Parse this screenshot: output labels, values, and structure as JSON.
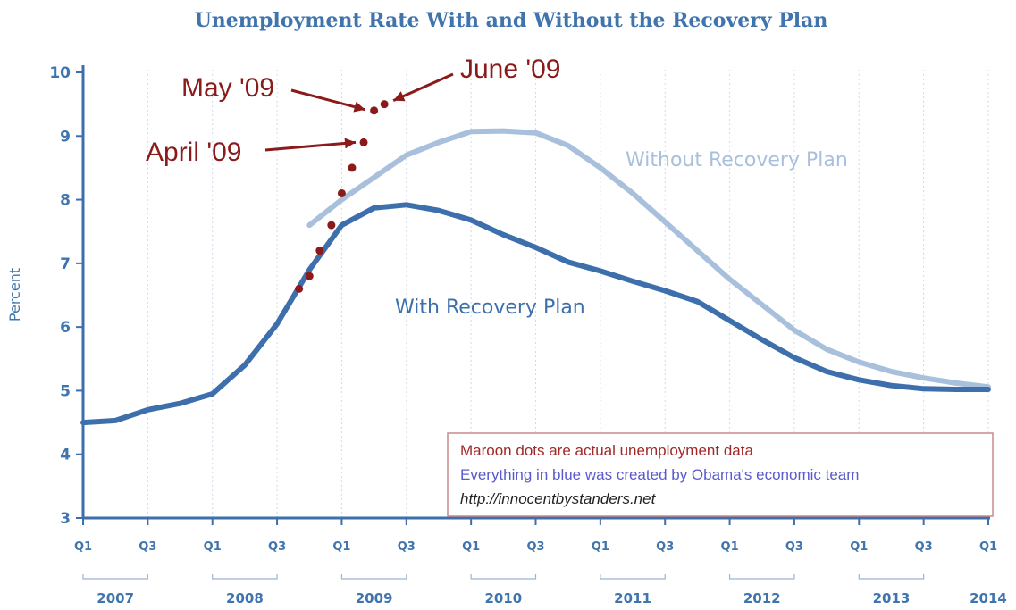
{
  "chart_data": {
    "type": "line",
    "title": "Unemployment Rate With and Without the Recovery Plan",
    "xlabel": "",
    "ylabel": "Percent",
    "ylim": [
      3,
      10
    ],
    "yticks": [
      "3",
      "4",
      "5",
      "6",
      "7",
      "8",
      "9",
      "10"
    ],
    "xlim": [
      2007.0,
      2014.0
    ],
    "quarter_ticks": [
      {
        "label": "Q1",
        "x": 2007.0
      },
      {
        "label": "Q3",
        "x": 2007.5
      },
      {
        "label": "Q1",
        "x": 2008.0
      },
      {
        "label": "Q3",
        "x": 2008.5
      },
      {
        "label": "Q1",
        "x": 2009.0
      },
      {
        "label": "Q3",
        "x": 2009.5
      },
      {
        "label": "Q1",
        "x": 2010.0
      },
      {
        "label": "Q3",
        "x": 2010.5
      },
      {
        "label": "Q1",
        "x": 2011.0
      },
      {
        "label": "Q3",
        "x": 2011.5
      },
      {
        "label": "Q1",
        "x": 2012.0
      },
      {
        "label": "Q3",
        "x": 2012.5
      },
      {
        "label": "Q1",
        "x": 2013.0
      },
      {
        "label": "Q3",
        "x": 2013.5
      },
      {
        "label": "Q1",
        "x": 2014.0
      }
    ],
    "year_labels": [
      {
        "label": "2007",
        "x": 2007.25
      },
      {
        "label": "2008",
        "x": 2008.25
      },
      {
        "label": "2009",
        "x": 2009.25
      },
      {
        "label": "2010",
        "x": 2010.25
      },
      {
        "label": "2011",
        "x": 2011.25
      },
      {
        "label": "2012",
        "x": 2012.25
      },
      {
        "label": "2013",
        "x": 2013.25
      },
      {
        "label": "2014",
        "x": 2014.0
      }
    ],
    "series": [
      {
        "name": "Without Recovery Plan",
        "color": "#a9c0dc",
        "points": [
          [
            2008.75,
            7.6
          ],
          [
            2009.0,
            8.0
          ],
          [
            2009.25,
            8.35
          ],
          [
            2009.5,
            8.7
          ],
          [
            2009.75,
            8.9
          ],
          [
            2010.0,
            9.07
          ],
          [
            2010.25,
            9.08
          ],
          [
            2010.5,
            9.05
          ],
          [
            2010.75,
            8.85
          ],
          [
            2011.0,
            8.5
          ],
          [
            2011.25,
            8.1
          ],
          [
            2011.5,
            7.65
          ],
          [
            2011.75,
            7.2
          ],
          [
            2012.0,
            6.75
          ],
          [
            2012.25,
            6.35
          ],
          [
            2012.5,
            5.95
          ],
          [
            2012.75,
            5.65
          ],
          [
            2013.0,
            5.45
          ],
          [
            2013.25,
            5.3
          ],
          [
            2013.5,
            5.2
          ],
          [
            2013.75,
            5.12
          ],
          [
            2014.0,
            5.06
          ]
        ]
      },
      {
        "name": "With Recovery Plan",
        "color": "#3d6fac",
        "points": [
          [
            2007.0,
            4.5
          ],
          [
            2007.25,
            4.53
          ],
          [
            2007.5,
            4.7
          ],
          [
            2007.75,
            4.8
          ],
          [
            2008.0,
            4.95
          ],
          [
            2008.25,
            5.4
          ],
          [
            2008.5,
            6.05
          ],
          [
            2008.75,
            6.9
          ],
          [
            2009.0,
            7.6
          ],
          [
            2009.25,
            7.87
          ],
          [
            2009.5,
            7.92
          ],
          [
            2009.75,
            7.83
          ],
          [
            2010.0,
            7.68
          ],
          [
            2010.25,
            7.45
          ],
          [
            2010.5,
            7.25
          ],
          [
            2010.75,
            7.02
          ],
          [
            2011.0,
            6.88
          ],
          [
            2011.25,
            6.72
          ],
          [
            2011.5,
            6.57
          ],
          [
            2011.75,
            6.4
          ],
          [
            2012.0,
            6.1
          ],
          [
            2012.25,
            5.8
          ],
          [
            2012.5,
            5.52
          ],
          [
            2012.75,
            5.3
          ],
          [
            2013.0,
            5.17
          ],
          [
            2013.25,
            5.08
          ],
          [
            2013.5,
            5.03
          ],
          [
            2013.75,
            5.02
          ],
          [
            2014.0,
            5.02
          ]
        ]
      },
      {
        "name": "Actual unemployment",
        "color": "#8b1a1a",
        "points": [
          [
            2008.67,
            6.6
          ],
          [
            2008.75,
            6.8
          ],
          [
            2008.83,
            7.2
          ],
          [
            2008.92,
            7.6
          ],
          [
            2009.0,
            8.1
          ],
          [
            2009.08,
            8.5
          ],
          [
            2009.17,
            8.9
          ],
          [
            2009.25,
            9.4
          ],
          [
            2009.33,
            9.5
          ]
        ]
      }
    ],
    "series_labels": [
      {
        "text": "Without Recovery Plan",
        "color": "#a9c0dc"
      },
      {
        "text": "With Recovery Plan",
        "color": "#3d6fac"
      }
    ],
    "annotations": [
      {
        "text": "June '09"
      },
      {
        "text": "May '09"
      },
      {
        "text": "April '09"
      }
    ],
    "note": {
      "line1": "Maroon dots are actual unemployment data",
      "line2": "Everything in blue was created by Obama's economic team",
      "line3": "http://innocentbystanders.net"
    },
    "colors": {
      "axis": "#3d6fac",
      "note_border": "#c98a8a",
      "note_maroon": "#a02828",
      "note_blue": "#5a5acf",
      "note_black": "#222222"
    }
  }
}
